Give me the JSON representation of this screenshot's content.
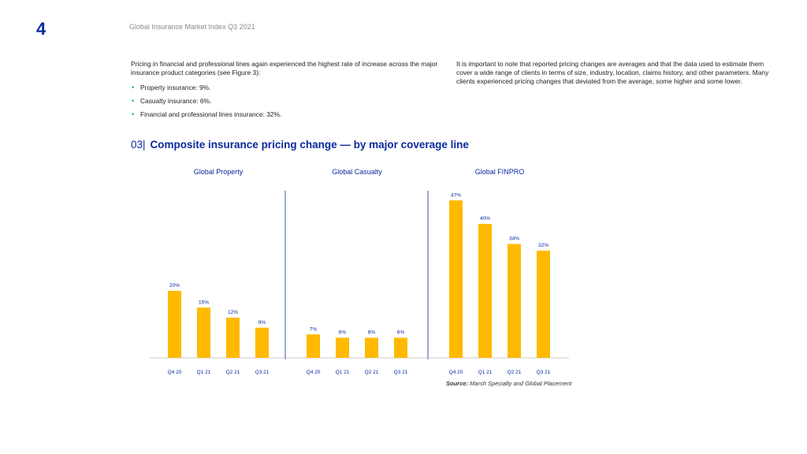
{
  "page": {
    "number": "4",
    "header": "Global Insurance Market Index Q3 2021"
  },
  "intro": {
    "left_text": "Pricing in financial and professional lines again experienced the highest rate of increase across the major insurance product categories (see Figure 3):",
    "bullets": [
      "Property insurance: 9%.",
      "Casualty insurance: 6%.",
      "Financial and professional lines insurance: 32%."
    ],
    "right_text": "It is important to note that reported pricing changes are averages and that the data used to estimate them cover a wide range of clients in terms of size, industry, location, claims history, and other parameters. Many clients experienced pricing changes that deviated from the average, some higher and some lower."
  },
  "figure": {
    "number": "03|",
    "title": "Composite insurance pricing change — by major coverage line",
    "source_label": "Source:",
    "source_text": "Marsh Specialty and Global Placement"
  },
  "colors": {
    "bar": "#FFB900",
    "accent": "#0A2A9C",
    "bullet": "#00A8A0"
  },
  "chart_data": {
    "type": "bar",
    "ylim": [
      0,
      50
    ],
    "grid": false,
    "panels": [
      {
        "title": "Global Property",
        "categories": [
          "Q4 20",
          "Q1 21",
          "Q2 21",
          "Q3 21"
        ],
        "values": [
          20,
          15,
          12,
          9
        ],
        "labels": [
          "20%",
          "15%",
          "12%",
          "9%"
        ]
      },
      {
        "title": "Global Casualty",
        "categories": [
          "Q4 20",
          "Q1 21",
          "Q2 21",
          "Q3 21"
        ],
        "values": [
          7,
          6,
          6,
          6
        ],
        "labels": [
          "7%",
          "6%",
          "6%",
          "6%"
        ]
      },
      {
        "title": "Global FINPRO",
        "categories": [
          "Q4 20",
          "Q1 21",
          "Q2 21",
          "Q3 21"
        ],
        "values": [
          47,
          40,
          34,
          32
        ],
        "labels": [
          "47%",
          "40%",
          "34%",
          "32%"
        ]
      }
    ]
  }
}
